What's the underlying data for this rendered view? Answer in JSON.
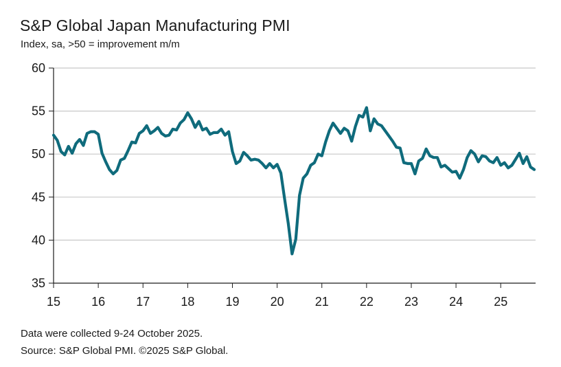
{
  "title": "S&P Global Japan Manufacturing PMI",
  "subtitle": "Index, sa, >50 = improvement m/m",
  "notes": {
    "collected": "Data were collected 9-24 October 2025.",
    "source": "Source: S&P Global PMI. ©2025 S&P Global."
  },
  "colors": {
    "line": "#0f6b7c",
    "grid": "#c8c8c8",
    "axis": "#1a1a1a"
  },
  "chart_data": {
    "type": "line",
    "title": "S&P Global Japan Manufacturing PMI",
    "ylabel": "Index, sa, >50 = improvement m/m",
    "xlabel": "",
    "ylim": [
      35,
      60
    ],
    "yticks": [
      35,
      40,
      45,
      50,
      55,
      60
    ],
    "xticks": [
      "15",
      "16",
      "17",
      "18",
      "19",
      "20",
      "21",
      "22",
      "23",
      "24",
      "25"
    ],
    "grid": "horizontal",
    "x_start": "2015-01",
    "x_end": "2025-10",
    "x_frequency": "monthly",
    "series": [
      {
        "name": "",
        "values": [
          52.2,
          51.6,
          50.3,
          49.9,
          50.9,
          50.1,
          51.2,
          51.7,
          51.0,
          52.4,
          52.6,
          52.6,
          52.3,
          50.1,
          49.1,
          48.2,
          47.7,
          48.1,
          49.3,
          49.5,
          50.4,
          51.4,
          51.3,
          52.4,
          52.7,
          53.3,
          52.4,
          52.7,
          53.1,
          52.4,
          52.1,
          52.2,
          52.9,
          52.8,
          53.6,
          54.0,
          54.8,
          54.1,
          53.1,
          53.8,
          52.8,
          53.0,
          52.3,
          52.5,
          52.5,
          52.9,
          52.2,
          52.6,
          50.3,
          48.9,
          49.2,
          50.2,
          49.8,
          49.3,
          49.4,
          49.3,
          48.9,
          48.4,
          48.9,
          48.4,
          48.8,
          47.8,
          44.8,
          41.9,
          38.4,
          40.1,
          45.2,
          47.2,
          47.7,
          48.7,
          49.0,
          50.0,
          49.8,
          51.4,
          52.7,
          53.6,
          53.0,
          52.4,
          53.0,
          52.7,
          51.5,
          53.2,
          54.5,
          54.3,
          55.4,
          52.7,
          54.1,
          53.5,
          53.3,
          52.7,
          52.1,
          51.5,
          50.8,
          50.7,
          49.0,
          48.9,
          48.9,
          47.7,
          49.2,
          49.5,
          50.6,
          49.8,
          49.6,
          49.6,
          48.5,
          48.7,
          48.3,
          47.9,
          48.0,
          47.2,
          48.2,
          49.6,
          50.4,
          50.0,
          49.1,
          49.8,
          49.7,
          49.2,
          49.0,
          49.6,
          48.7,
          49.0,
          48.4,
          48.7,
          49.4,
          50.1,
          48.9,
          49.7,
          48.5,
          48.2
        ]
      }
    ]
  }
}
